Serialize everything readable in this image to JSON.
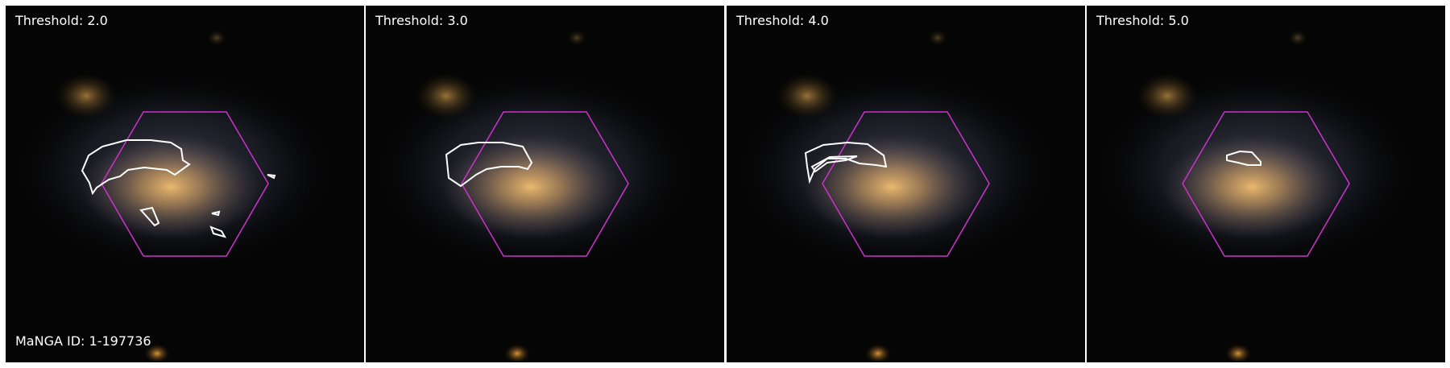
{
  "panels": [
    {
      "threshold_label": "Threshold: 2.0"
    },
    {
      "threshold_label": "Threshold: 3.0"
    },
    {
      "threshold_label": "Threshold: 4.0"
    },
    {
      "threshold_label": "Threshold: 5.0"
    }
  ],
  "manga_id_label": "MaNGA ID: 1-197736",
  "colors": {
    "hexagon": "#cc33cc",
    "contour": "#ffffff",
    "background": "#050505",
    "galaxy_core": "#e8b060"
  }
}
